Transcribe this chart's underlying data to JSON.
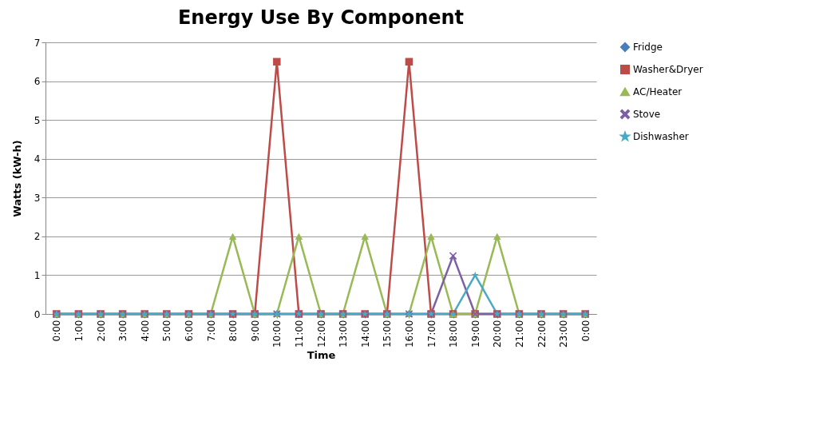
{
  "chart_data": {
    "type": "line",
    "title": "Energy Use By Component",
    "xlabel": "Time",
    "ylabel": "Watts   (kW-h)",
    "categories": [
      "0:00",
      "1:00",
      "2:00",
      "3:00",
      "4:00",
      "5:00",
      "6:00",
      "7:00",
      "8:00",
      "9:00",
      "10:00",
      "11:00",
      "12:00",
      "13:00",
      "14:00",
      "15:00",
      "16:00",
      "17:00",
      "18:00",
      "19:00",
      "20:00",
      "21:00",
      "22:00",
      "23:00",
      "0:00"
    ],
    "ylim": [
      0,
      7
    ],
    "yticks": [
      0,
      1,
      2,
      3,
      4,
      5,
      6,
      7
    ],
    "grid": "y",
    "legend": "right",
    "series": [
      {
        "name": "Fridge",
        "color": "#4a7ebb",
        "marker": "diamond",
        "values": [
          0,
          0,
          0,
          0,
          0,
          0,
          0,
          0,
          0,
          0,
          0,
          0,
          0,
          0,
          0,
          0,
          0,
          0,
          0,
          0,
          0,
          0,
          0,
          0,
          0
        ]
      },
      {
        "name": "Washer&Dryer",
        "color": "#be4b48",
        "marker": "square",
        "values": [
          0,
          0,
          0,
          0,
          0,
          0,
          0,
          0,
          0,
          0,
          6.5,
          0,
          0,
          0,
          0,
          0,
          6.5,
          0,
          0,
          0,
          0,
          0,
          0,
          0,
          0
        ]
      },
      {
        "name": "AC/Heater",
        "color": "#98b954",
        "marker": "triangle",
        "values": [
          0,
          0,
          0,
          0,
          0,
          0,
          0,
          0,
          2,
          0,
          0,
          2,
          0,
          0,
          2,
          0,
          0,
          2,
          0,
          0,
          2,
          0,
          0,
          0,
          0
        ]
      },
      {
        "name": "Stove",
        "color": "#7d60a0",
        "marker": "cross",
        "values": [
          0,
          0,
          0,
          0,
          0,
          0,
          0,
          0,
          0,
          0,
          0,
          0,
          0,
          0,
          0,
          0,
          0,
          0,
          1.5,
          0,
          0,
          0,
          0,
          0,
          0
        ]
      },
      {
        "name": "Dishwasher",
        "color": "#46aac5",
        "marker": "star",
        "values": [
          0,
          0,
          0,
          0,
          0,
          0,
          0,
          0,
          0,
          0,
          0,
          0,
          0,
          0,
          0,
          0,
          0,
          0,
          0,
          1,
          0,
          0,
          0,
          0,
          0
        ]
      }
    ]
  }
}
